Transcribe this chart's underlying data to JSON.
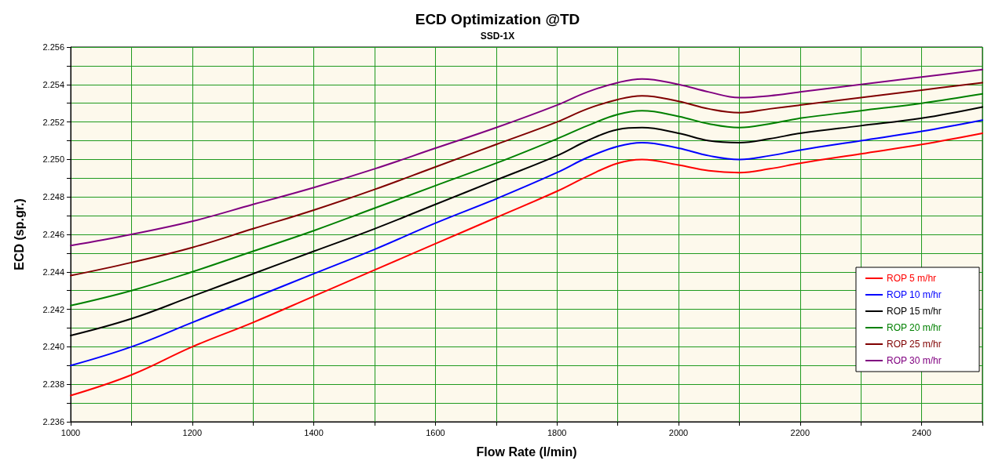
{
  "chart_data": {
    "type": "line",
    "title": "ECD Optimization @TD",
    "subtitle": "SSD-1X",
    "xlabel": "Flow Rate (l/min)",
    "ylabel": "ECD (sp.gr.)",
    "x": [
      1000,
      1100,
      1200,
      1300,
      1400,
      1500,
      1600,
      1700,
      1800,
      1850,
      1900,
      1940,
      2000,
      2050,
      2100,
      2150,
      2200,
      2300,
      2400,
      2500
    ],
    "series": [
      {
        "name": "ROP 5 m/hr",
        "color": "#ff0000",
        "values": [
          2.2374,
          2.2385,
          2.24,
          2.2413,
          2.2427,
          2.2441,
          2.2455,
          2.2469,
          2.2483,
          2.2491,
          2.2498,
          2.25,
          2.2497,
          2.2494,
          2.2493,
          2.2495,
          2.2498,
          2.2503,
          2.2508,
          2.2514
        ]
      },
      {
        "name": "ROP 10 m/hr",
        "color": "#0000ff",
        "values": [
          2.239,
          2.24,
          2.2413,
          2.2426,
          2.2439,
          2.2452,
          2.2466,
          2.2479,
          2.2493,
          2.2501,
          2.2507,
          2.2509,
          2.2506,
          2.2502,
          2.25,
          2.2502,
          2.2505,
          2.251,
          2.2515,
          2.2521
        ]
      },
      {
        "name": "ROP 15 m/hr",
        "color": "#000000",
        "values": [
          2.2406,
          2.2415,
          2.2427,
          2.2439,
          2.2451,
          2.2463,
          2.2476,
          2.2489,
          2.2502,
          2.251,
          2.2516,
          2.2517,
          2.2514,
          2.251,
          2.2509,
          2.2511,
          2.2514,
          2.2518,
          2.2522,
          2.2528
        ]
      },
      {
        "name": "ROP 20 m/hr",
        "color": "#008000",
        "values": [
          2.2422,
          2.243,
          2.244,
          2.2451,
          2.2462,
          2.2474,
          2.2486,
          2.2498,
          2.2511,
          2.2518,
          2.2524,
          2.2526,
          2.2523,
          2.2519,
          2.2517,
          2.2519,
          2.2522,
          2.2526,
          2.253,
          2.2535
        ]
      },
      {
        "name": "ROP 25 m/hr",
        "color": "#800000",
        "values": [
          2.2438,
          2.2445,
          2.2453,
          2.2463,
          2.2473,
          2.2484,
          2.2496,
          2.2508,
          2.252,
          2.2527,
          2.2532,
          2.2534,
          2.2531,
          2.2527,
          2.2525,
          2.2527,
          2.2529,
          2.2533,
          2.2537,
          2.2541
        ]
      },
      {
        "name": "ROP 30 m/hr",
        "color": "#800080",
        "values": [
          2.2454,
          2.246,
          2.2467,
          2.2476,
          2.2485,
          2.2495,
          2.2506,
          2.2517,
          2.2529,
          2.2536,
          2.2541,
          2.2543,
          2.254,
          2.2536,
          2.2533,
          2.2534,
          2.2536,
          2.254,
          2.2544,
          2.2548
        ]
      }
    ],
    "xlim": [
      1000,
      2500
    ],
    "xticks": [
      1000,
      {
        "value": 1100,
        "label": null
      },
      1200,
      {
        "value": 1300,
        "label": null
      },
      1400,
      {
        "value": 1500,
        "label": null
      },
      1600,
      {
        "value": 1700,
        "label": null
      },
      1800,
      {
        "value": 1900,
        "label": null
      },
      2000,
      {
        "value": 2100,
        "label": null
      },
      2200,
      {
        "value": 2300,
        "label": null
      },
      2400,
      {
        "value": 2500,
        "label": null
      }
    ],
    "ylim": [
      2.236,
      2.256
    ],
    "yticks": [
      {
        "value": 2.236,
        "label": "2.236"
      },
      {
        "value": 2.237,
        "label": null
      },
      {
        "value": 2.238,
        "label": "2.238"
      },
      {
        "value": 2.239,
        "label": null
      },
      {
        "value": 2.24,
        "label": "2.240"
      },
      {
        "value": 2.241,
        "label": null
      },
      {
        "value": 2.242,
        "label": "2.242"
      },
      {
        "value": 2.243,
        "label": null
      },
      {
        "value": 2.244,
        "label": "2.244"
      },
      {
        "value": 2.245,
        "label": null
      },
      {
        "value": 2.246,
        "label": "2.246"
      },
      {
        "value": 2.247,
        "label": null
      },
      {
        "value": 2.248,
        "label": "2.248"
      },
      {
        "value": 2.249,
        "label": null
      },
      {
        "value": 2.25,
        "label": "2.250"
      },
      {
        "value": 2.251,
        "label": null
      },
      {
        "value": 2.252,
        "label": "2.252"
      },
      {
        "value": 2.253,
        "label": null
      },
      {
        "value": 2.254,
        "label": "2.254"
      },
      {
        "value": 2.255,
        "label": null
      },
      {
        "value": 2.256,
        "label": "2.256"
      }
    ],
    "grid": true,
    "legend": "right",
    "marker": "none",
    "line_style": "solid"
  }
}
